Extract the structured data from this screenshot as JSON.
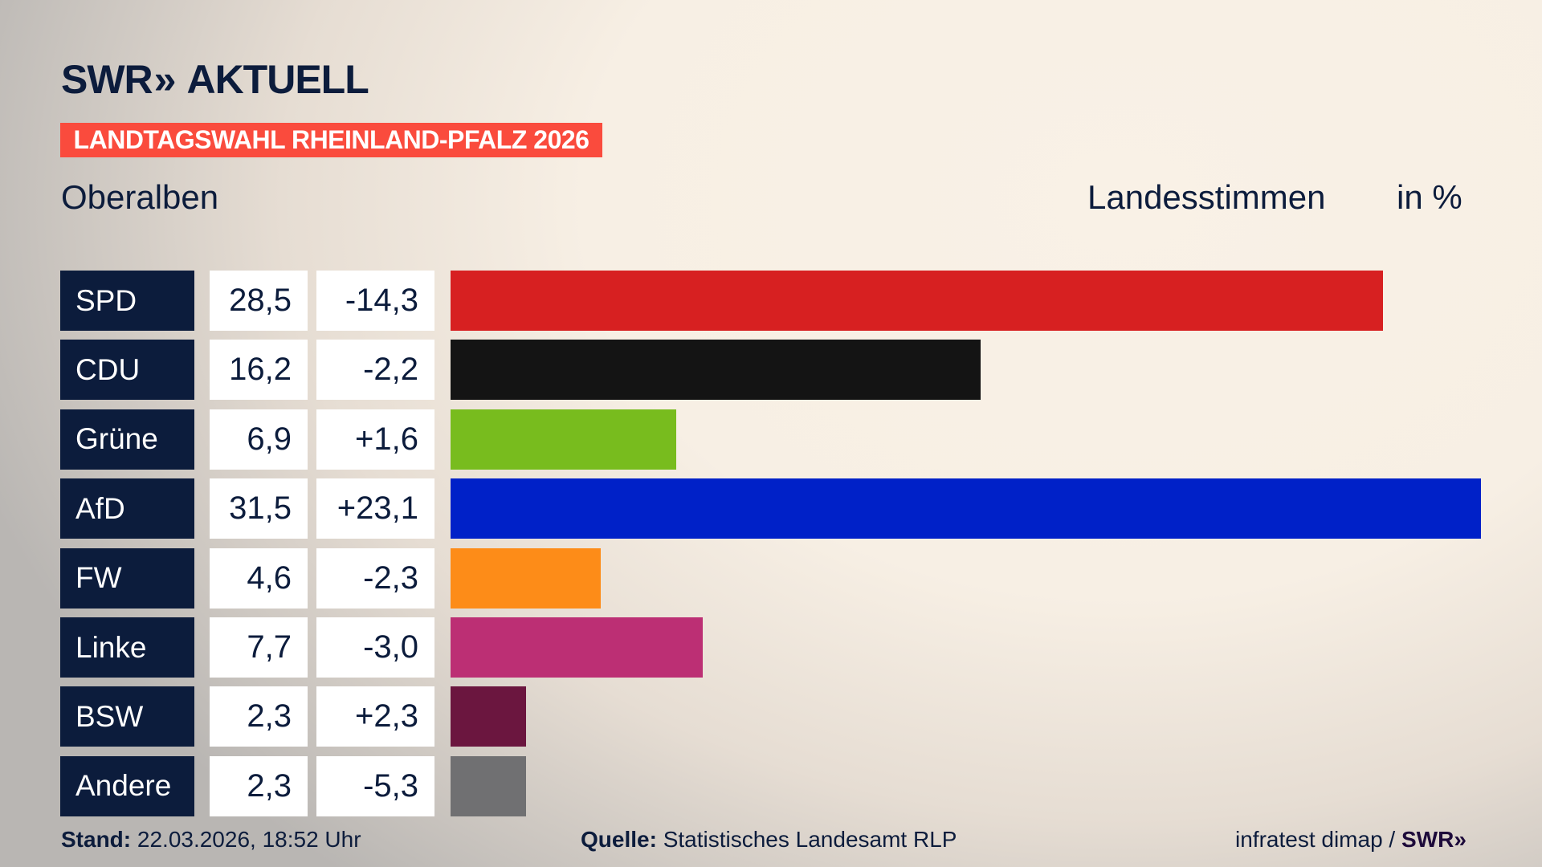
{
  "header": {
    "logo_text": "SWR",
    "logo_suffix": "AKTUELL",
    "banner": "LANDTAGSWAHL RHEINLAND-PFALZ 2026",
    "region": "Oberalben",
    "measure": "Landesstimmen",
    "unit": "in %"
  },
  "chart_data": {
    "type": "bar",
    "orientation": "horizontal",
    "categories": [
      "SPD",
      "CDU",
      "Grüne",
      "AfD",
      "FW",
      "Linke",
      "BSW",
      "Andere"
    ],
    "values": [
      28.5,
      16.2,
      6.9,
      31.5,
      4.6,
      7.7,
      2.3,
      2.3
    ],
    "value_labels": [
      "28,5",
      "16,2",
      "6,9",
      "31,5",
      "4,6",
      "7,7",
      "2,3",
      "2,3"
    ],
    "change_labels": [
      "-14,3",
      "-2,2",
      "+1,6",
      "+23,1",
      "-2,3",
      "-3,0",
      "+2,3",
      "-5,3"
    ],
    "changes": [
      -14.3,
      -2.2,
      1.6,
      23.1,
      -2.3,
      -3.0,
      2.3,
      -5.3
    ],
    "colors": [
      "#d72021",
      "#141414",
      "#78bc1e",
      "#0021c8",
      "#fd8c18",
      "#bc2f74",
      "#6b163f",
      "#707072"
    ],
    "xlim": [
      0,
      31.5
    ],
    "grid": false
  },
  "footer": {
    "stand_label": "Stand:",
    "stand_value": "22.03.2026, 18:52 Uhr",
    "source_label": "Quelle:",
    "source_value": "Statistisches Landesamt RLP",
    "credit": "infratest dimap /",
    "credit_logo": "SWR"
  }
}
